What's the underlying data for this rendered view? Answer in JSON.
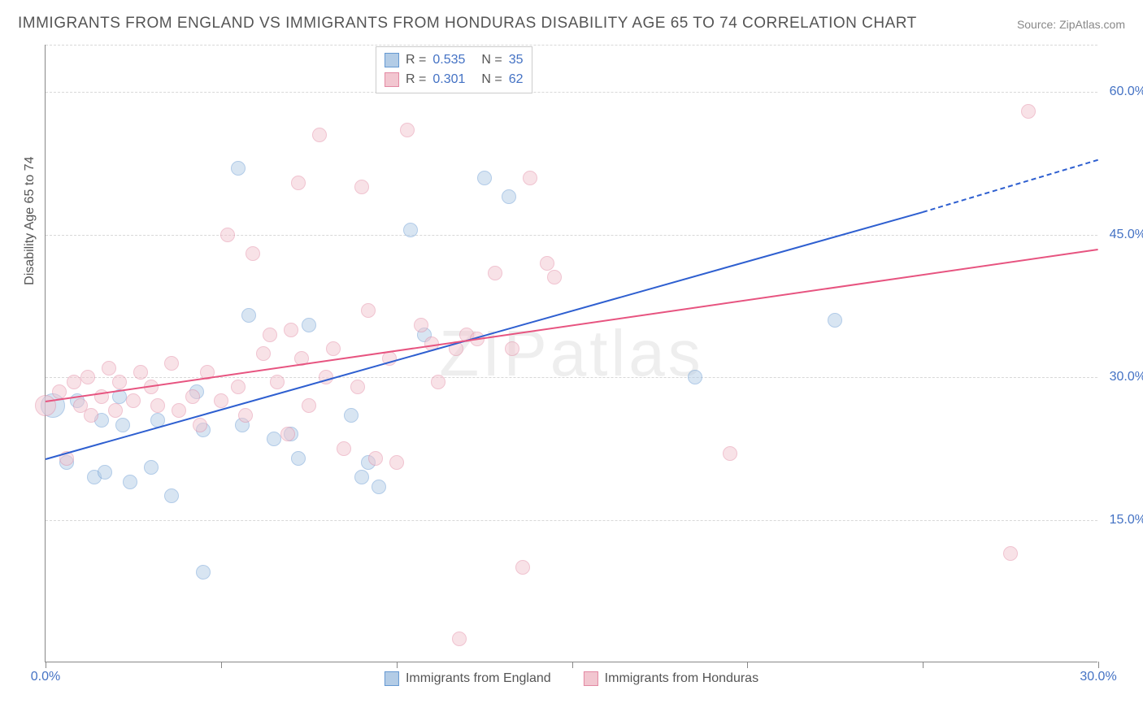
{
  "title": "IMMIGRANTS FROM ENGLAND VS IMMIGRANTS FROM HONDURAS DISABILITY AGE 65 TO 74 CORRELATION CHART",
  "source": "Source: ZipAtlas.com",
  "watermark": "ZIPatlas",
  "ylabel": "Disability Age 65 to 74",
  "chart": {
    "type": "scatter",
    "xlim": [
      0,
      30
    ],
    "ylim": [
      0,
      65
    ],
    "xticks": [
      0,
      5,
      10,
      15,
      20,
      25,
      30
    ],
    "xticks_labeled": {
      "0": "0.0%",
      "30": "30.0%"
    },
    "yticks": [
      15,
      30,
      45,
      60
    ],
    "ytick_labels": [
      "15.0%",
      "30.0%",
      "45.0%",
      "60.0%"
    ],
    "background_color": "#ffffff",
    "grid_color": "#d8d8d8",
    "axis_color": "#888888",
    "tick_label_color": "#4472c4",
    "title_fontsize": 19,
    "label_fontsize": 16,
    "marker_radius": 9,
    "marker_opacity": 0.5,
    "series": [
      {
        "name": "Immigrants from England",
        "color_fill": "#b3cce6",
        "color_stroke": "#6699d2",
        "line_color": "#2e5fd0",
        "R": "0.535",
        "N": "35",
        "trend": {
          "x0": 0,
          "y0": 21.5,
          "x1_solid": 25,
          "y1_solid": 47.5,
          "x1_dash": 30,
          "y1_dash": 53
        },
        "points": [
          {
            "x": 0.2,
            "y": 27.0,
            "r": 15
          },
          {
            "x": 0.6,
            "y": 21.0
          },
          {
            "x": 0.9,
            "y": 27.5
          },
          {
            "x": 1.4,
            "y": 19.5
          },
          {
            "x": 1.6,
            "y": 25.5
          },
          {
            "x": 1.7,
            "y": 20.0
          },
          {
            "x": 2.1,
            "y": 28.0
          },
          {
            "x": 2.2,
            "y": 25.0
          },
          {
            "x": 2.4,
            "y": 19.0
          },
          {
            "x": 3.0,
            "y": 20.5
          },
          {
            "x": 3.2,
            "y": 25.5
          },
          {
            "x": 3.6,
            "y": 17.5
          },
          {
            "x": 4.3,
            "y": 28.5
          },
          {
            "x": 4.5,
            "y": 24.5
          },
          {
            "x": 4.5,
            "y": 9.5
          },
          {
            "x": 5.5,
            "y": 52.0
          },
          {
            "x": 5.6,
            "y": 25.0
          },
          {
            "x": 5.8,
            "y": 36.5
          },
          {
            "x": 6.5,
            "y": 23.5
          },
          {
            "x": 7.0,
            "y": 24.0
          },
          {
            "x": 7.2,
            "y": 21.5
          },
          {
            "x": 7.5,
            "y": 35.5
          },
          {
            "x": 8.7,
            "y": 26.0
          },
          {
            "x": 9.0,
            "y": 19.5
          },
          {
            "x": 9.2,
            "y": 21.0
          },
          {
            "x": 9.5,
            "y": 18.5
          },
          {
            "x": 10.4,
            "y": 45.5
          },
          {
            "x": 10.8,
            "y": 34.5
          },
          {
            "x": 12.5,
            "y": 51.0
          },
          {
            "x": 13.2,
            "y": 49.0
          },
          {
            "x": 18.5,
            "y": 30.0
          },
          {
            "x": 22.5,
            "y": 36.0
          }
        ]
      },
      {
        "name": "Immigrants from Honduras",
        "color_fill": "#f2c6d0",
        "color_stroke": "#e389a3",
        "line_color": "#e75480",
        "R": "0.301",
        "N": "62",
        "trend": {
          "x0": 0,
          "y0": 27.5,
          "x1_solid": 30,
          "y1_solid": 43.5
        },
        "points": [
          {
            "x": 0.0,
            "y": 27.0,
            "r": 13
          },
          {
            "x": 0.4,
            "y": 28.5
          },
          {
            "x": 0.6,
            "y": 21.5
          },
          {
            "x": 0.8,
            "y": 29.5
          },
          {
            "x": 1.0,
            "y": 27.0
          },
          {
            "x": 1.2,
            "y": 30.0
          },
          {
            "x": 1.3,
            "y": 26.0
          },
          {
            "x": 1.6,
            "y": 28.0
          },
          {
            "x": 1.8,
            "y": 31.0
          },
          {
            "x": 2.0,
            "y": 26.5
          },
          {
            "x": 2.1,
            "y": 29.5
          },
          {
            "x": 2.5,
            "y": 27.5
          },
          {
            "x": 2.7,
            "y": 30.5
          },
          {
            "x": 3.0,
            "y": 29.0
          },
          {
            "x": 3.2,
            "y": 27.0
          },
          {
            "x": 3.6,
            "y": 31.5
          },
          {
            "x": 3.8,
            "y": 26.5
          },
          {
            "x": 4.2,
            "y": 28.0
          },
          {
            "x": 4.4,
            "y": 25.0
          },
          {
            "x": 4.6,
            "y": 30.5
          },
          {
            "x": 5.0,
            "y": 27.5
          },
          {
            "x": 5.2,
            "y": 45.0
          },
          {
            "x": 5.5,
            "y": 29.0
          },
          {
            "x": 5.7,
            "y": 26.0
          },
          {
            "x": 5.9,
            "y": 43.0
          },
          {
            "x": 6.2,
            "y": 32.5
          },
          {
            "x": 6.4,
            "y": 34.5
          },
          {
            "x": 6.6,
            "y": 29.5
          },
          {
            "x": 6.9,
            "y": 24.0
          },
          {
            "x": 7.0,
            "y": 35.0
          },
          {
            "x": 7.2,
            "y": 50.5
          },
          {
            "x": 7.3,
            "y": 32.0
          },
          {
            "x": 7.5,
            "y": 27.0
          },
          {
            "x": 7.8,
            "y": 55.5
          },
          {
            "x": 8.0,
            "y": 30.0
          },
          {
            "x": 8.2,
            "y": 33.0
          },
          {
            "x": 8.5,
            "y": 22.5
          },
          {
            "x": 8.9,
            "y": 29.0
          },
          {
            "x": 9.0,
            "y": 50.0
          },
          {
            "x": 9.2,
            "y": 37.0
          },
          {
            "x": 9.4,
            "y": 21.5
          },
          {
            "x": 9.8,
            "y": 32.0
          },
          {
            "x": 10.0,
            "y": 21.0
          },
          {
            "x": 10.3,
            "y": 56.0
          },
          {
            "x": 10.7,
            "y": 35.5
          },
          {
            "x": 11.0,
            "y": 33.5
          },
          {
            "x": 11.2,
            "y": 29.5
          },
          {
            "x": 11.7,
            "y": 33.0
          },
          {
            "x": 11.8,
            "y": 2.5
          },
          {
            "x": 12.0,
            "y": 34.5
          },
          {
            "x": 12.3,
            "y": 34.0
          },
          {
            "x": 12.8,
            "y": 41.0
          },
          {
            "x": 13.3,
            "y": 33.0
          },
          {
            "x": 13.6,
            "y": 10.0
          },
          {
            "x": 13.8,
            "y": 51.0
          },
          {
            "x": 14.3,
            "y": 42.0
          },
          {
            "x": 14.5,
            "y": 40.5
          },
          {
            "x": 19.5,
            "y": 22.0
          },
          {
            "x": 27.5,
            "y": 11.5
          },
          {
            "x": 28.0,
            "y": 58.0
          }
        ]
      }
    ]
  }
}
